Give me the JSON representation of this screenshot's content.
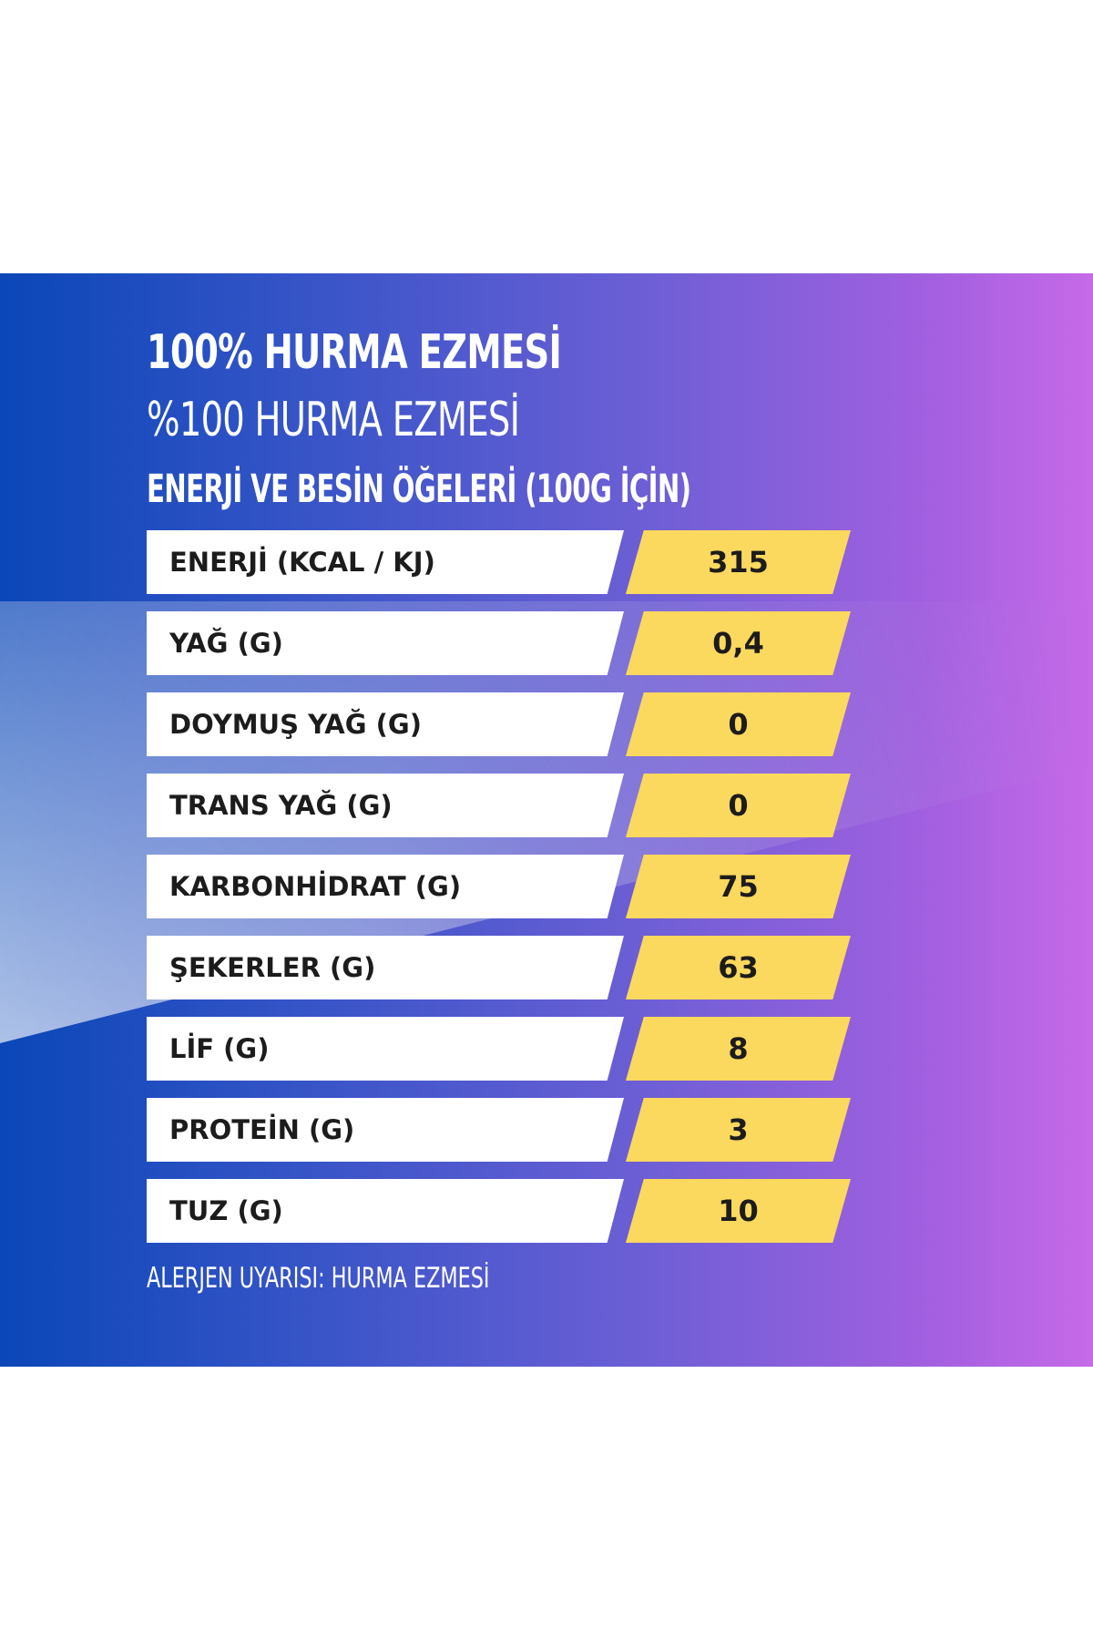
{
  "header": {
    "title_en": "100% HURMA EZMESİ",
    "title_tr": "%100 HURMA EZMESİ",
    "subtitle": "ENERJİ VE BESİN ÖĞELERİ (100G İÇİN)"
  },
  "nutrition": {
    "rows": [
      {
        "label": "ENERJİ (KCAL / KJ)",
        "value": "315"
      },
      {
        "label": "YAĞ (G)",
        "value": "0,4"
      },
      {
        "label": "DOYMUŞ YAĞ (G)",
        "value": "0"
      },
      {
        "label": "TRANS YAĞ (G)",
        "value": "0"
      },
      {
        "label": "KARBONHİDRAT (G)",
        "value": "75"
      },
      {
        "label": "ŞEKERLER (G)",
        "value": "63"
      },
      {
        "label": "LİF (G)",
        "value": "8"
      },
      {
        "label": "PROTEİN (G)",
        "value": "3"
      },
      {
        "label": "TUZ (G)",
        "value": "10"
      }
    ]
  },
  "footer": {
    "allergen_warning": "ALERJEN UYARISI: HURMA EZMESİ"
  },
  "colors": {
    "panel_left": "#0a47b8",
    "panel_right": "#c66ae8",
    "value_fill": "#fbd85e",
    "label_fill": "#ffffff",
    "text_dark": "#1c1c1c"
  }
}
